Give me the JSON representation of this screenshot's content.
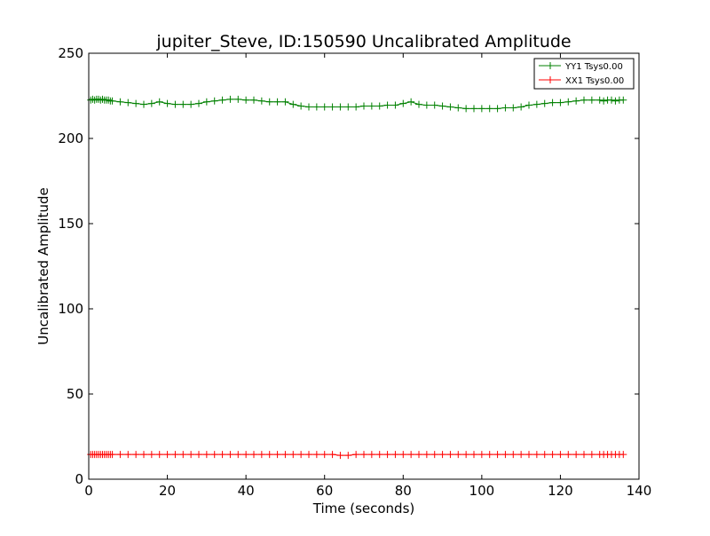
{
  "chart_data": {
    "type": "line",
    "title": "jupiter_Steve, ID:150590 Uncalibrated Amplitude",
    "xlabel": "Time (seconds)",
    "ylabel": "Uncalibrated Amplitude",
    "xlim": [
      0,
      140
    ],
    "ylim": [
      0,
      250
    ],
    "xticks": [
      0,
      20,
      40,
      60,
      80,
      100,
      120,
      140
    ],
    "yticks": [
      0,
      50,
      100,
      150,
      200,
      250
    ],
    "grid": false,
    "legend_position": "top-right",
    "marker": "plus",
    "series": [
      {
        "name": "YY1 Tsys0.00",
        "color": "#008000",
        "x": [
          0.5,
          1,
          1.5,
          2,
          2.5,
          3,
          3.5,
          4,
          4.5,
          5,
          5.5,
          6,
          8,
          10,
          12,
          14,
          16,
          18,
          20,
          22,
          24,
          26,
          28,
          30,
          32,
          34,
          36,
          38,
          40,
          42,
          44,
          46,
          48,
          50,
          52,
          54,
          56,
          58,
          60,
          62,
          64,
          66,
          68,
          70,
          72,
          74,
          76,
          78,
          80,
          82,
          84,
          86,
          88,
          90,
          92,
          94,
          96,
          98,
          100,
          102,
          104,
          106,
          108,
          110,
          112,
          114,
          116,
          118,
          120,
          122,
          124,
          126,
          128,
          130,
          131,
          132,
          133,
          134,
          135,
          136
        ],
        "y": [
          222.5,
          223,
          222.5,
          223,
          223,
          222.5,
          223,
          222.5,
          222.5,
          222.5,
          222,
          222,
          221.5,
          221,
          220.5,
          220,
          220.5,
          221.5,
          220.5,
          220,
          220,
          220,
          220.5,
          221.5,
          222,
          222.5,
          223,
          223,
          222.5,
          222.5,
          222,
          221.5,
          221.5,
          221.5,
          220,
          219,
          218.5,
          218.5,
          218.5,
          218.5,
          218.5,
          218.5,
          218.5,
          219,
          219,
          219,
          219.5,
          219.5,
          220.5,
          221.5,
          220,
          219.5,
          219.5,
          219,
          218.5,
          218,
          217.5,
          217.5,
          217.5,
          217.5,
          217.5,
          218,
          218,
          218.5,
          219.5,
          220,
          220.5,
          221,
          221,
          221.5,
          222,
          222.5,
          222.5,
          222.5,
          222,
          222.5,
          222.5,
          222,
          222.5,
          222.5
        ]
      },
      {
        "name": "XX1 Tsys0.00",
        "color": "#ff0000",
        "x": [
          0.5,
          1,
          1.5,
          2,
          2.5,
          3,
          3.5,
          4,
          4.5,
          5,
          5.5,
          6,
          8,
          10,
          12,
          14,
          16,
          18,
          20,
          22,
          24,
          26,
          28,
          30,
          32,
          34,
          36,
          38,
          40,
          42,
          44,
          46,
          48,
          50,
          52,
          54,
          56,
          58,
          60,
          62,
          64,
          66,
          68,
          70,
          72,
          74,
          76,
          78,
          80,
          82,
          84,
          86,
          88,
          90,
          92,
          94,
          96,
          98,
          100,
          102,
          104,
          106,
          108,
          110,
          112,
          114,
          116,
          118,
          120,
          122,
          124,
          126,
          128,
          130,
          131,
          132,
          133,
          134,
          135,
          136
        ],
        "y": [
          14.5,
          14.5,
          14.5,
          14.5,
          14.5,
          14.5,
          14.5,
          14.5,
          14.5,
          14.5,
          14.5,
          14.5,
          14.5,
          14.5,
          14.5,
          14.5,
          14.5,
          14.5,
          14.5,
          14.5,
          14.5,
          14.5,
          14.5,
          14.5,
          14.5,
          14.5,
          14.5,
          14.5,
          14.5,
          14.5,
          14.5,
          14.5,
          14.5,
          14.5,
          14.5,
          14.5,
          14.5,
          14.5,
          14.5,
          14.5,
          14,
          14,
          14.5,
          14.5,
          14.5,
          14.5,
          14.5,
          14.5,
          14.5,
          14.5,
          14.5,
          14.5,
          14.5,
          14.5,
          14.5,
          14.5,
          14.5,
          14.5,
          14.5,
          14.5,
          14.5,
          14.5,
          14.5,
          14.5,
          14.5,
          14.5,
          14.5,
          14.5,
          14.5,
          14.5,
          14.5,
          14.5,
          14.5,
          14.5,
          14.5,
          14.5,
          14.5,
          14.5,
          14.5,
          14.5
        ]
      }
    ]
  }
}
